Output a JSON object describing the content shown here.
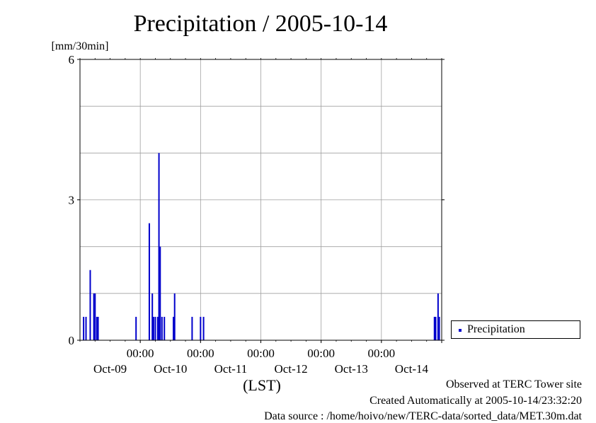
{
  "chart_data": {
    "type": "bar",
    "title": "Precipitation / 2005-10-14",
    "ylabel": "[mm/30min]",
    "xlabel": "(LST)",
    "ylim": [
      0,
      6
    ],
    "yticks": [
      0,
      3,
      6
    ],
    "xlim": [
      -1.0,
      5.0
    ],
    "xticks": [
      {
        "x": 0,
        "time": "00:00",
        "date": "Oct-09"
      },
      {
        "x": 1,
        "time": "00:00",
        "date": "Oct-10"
      },
      {
        "x": 2,
        "time": "00:00",
        "date": "Oct-11"
      },
      {
        "x": 3,
        "time": "00:00",
        "date": "Oct-12"
      },
      {
        "x": 4,
        "time": "00:00",
        "date": "Oct-13"
      },
      {
        "x": 5,
        "time": "",
        "date": "Oct-14"
      }
    ],
    "grid": true,
    "legend_position": "right",
    "series": [
      {
        "name": "Precipitation",
        "color": "#0000cc",
        "x": [
          -0.94,
          -0.9,
          -0.83,
          -0.77,
          -0.75,
          -0.72,
          -0.7,
          -0.07,
          0.15,
          0.2,
          0.22,
          0.25,
          0.29,
          0.31,
          0.33,
          0.36,
          0.4,
          0.55,
          0.57,
          0.86,
          1.0,
          1.05,
          4.88,
          4.9,
          4.94,
          4.96
        ],
        "values": [
          0.5,
          0.5,
          1.5,
          1.0,
          1.0,
          0.5,
          0.5,
          0.5,
          2.5,
          1.0,
          0.5,
          0.5,
          0.5,
          4.0,
          2.0,
          0.5,
          0.5,
          0.5,
          1.0,
          0.5,
          0.5,
          0.5,
          0.5,
          0.5,
          1.0,
          0.5
        ]
      }
    ]
  },
  "legend": {
    "label": "Precipitation"
  },
  "footer": {
    "line1": "Observed at TERC Tower site",
    "line2": "Created Automatically at 2005-10-14/23:32:20",
    "line3": "Data source : /home/hoivo/new/TERC-data/sorted_data/MET.30m.dat"
  }
}
